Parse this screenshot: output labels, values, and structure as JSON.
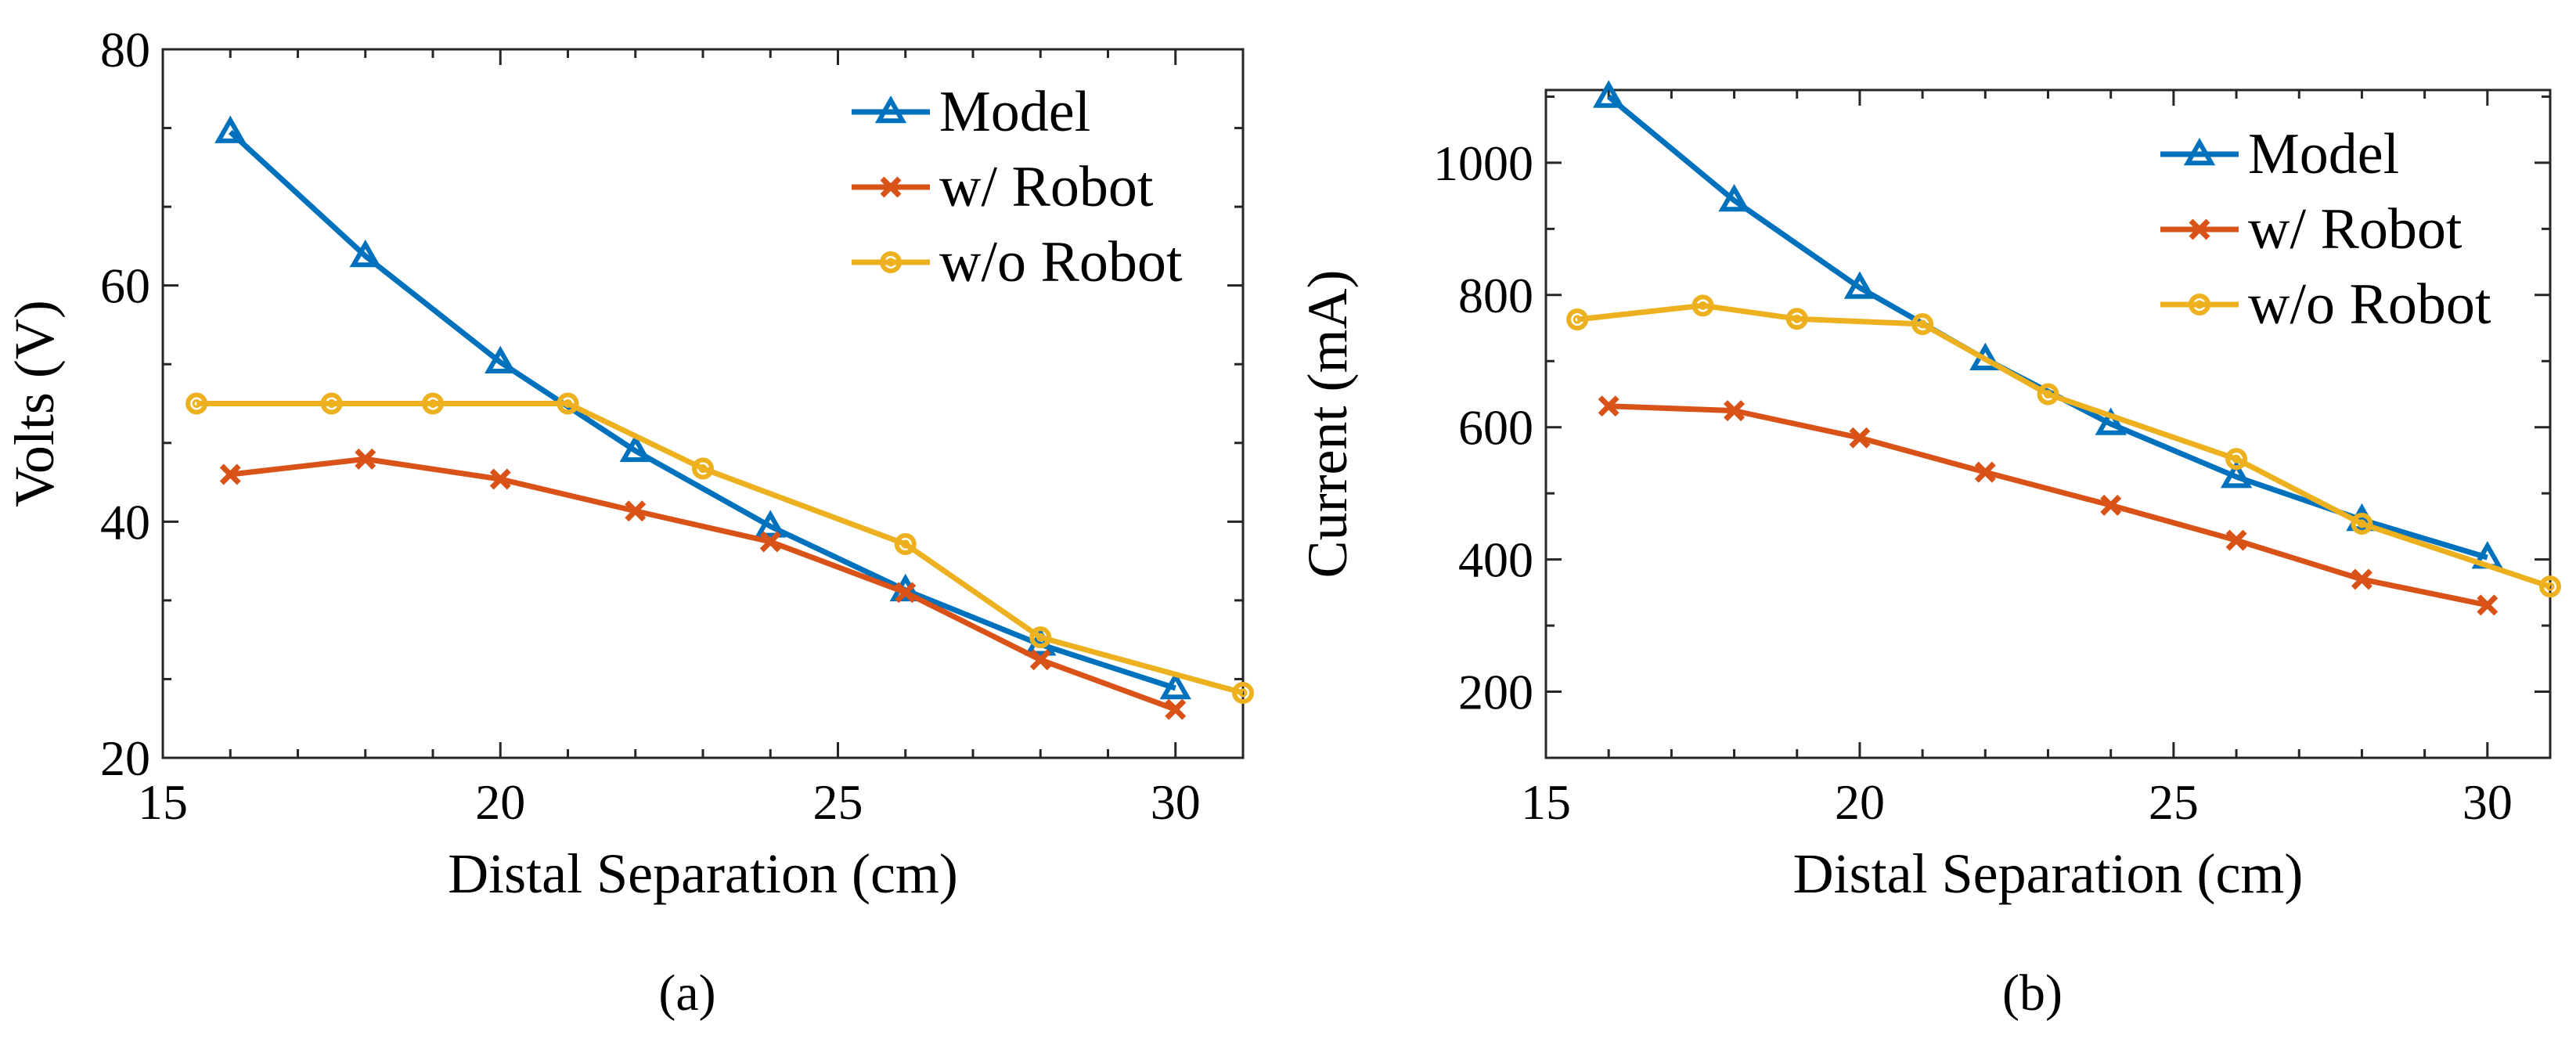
{
  "colors": {
    "model": "#0072BD",
    "with_robot": "#D95319",
    "without_robot": "#EDB120"
  },
  "chart_data": [
    {
      "type": "line",
      "panel_label": "(a)",
      "xlabel": "Distal Separation (cm)",
      "ylabel": "Volts (V)",
      "xlim": [
        15,
        31
      ],
      "ylim": [
        20,
        80
      ],
      "xticks": [
        15,
        20,
        25,
        30
      ],
      "yticks": [
        20,
        40,
        60,
        80
      ],
      "grid": false,
      "legend_position": "top-right",
      "series": [
        {
          "name": "Model",
          "marker": "triangle",
          "color": "#0072BD",
          "x": [
            16,
            18,
            20,
            22,
            24,
            26,
            28,
            30
          ],
          "y": [
            73.0,
            62.5,
            53.5,
            46.0,
            39.6,
            34.2,
            29.6,
            25.9
          ]
        },
        {
          "name": "w/ Robot",
          "marker": "x",
          "color": "#D95319",
          "x": [
            16,
            18,
            20,
            22,
            24,
            26,
            28,
            30
          ],
          "y": [
            44.0,
            45.3,
            43.6,
            40.9,
            38.3,
            34.0,
            28.3,
            24.1
          ]
        },
        {
          "name": "w/o Robot",
          "marker": "circle",
          "color": "#EDB120",
          "x": [
            15.5,
            17.5,
            19,
            21,
            23,
            26,
            28,
            31
          ],
          "y": [
            50.0,
            50.0,
            50.0,
            50.0,
            44.5,
            38.1,
            30.2,
            25.5
          ]
        }
      ]
    },
    {
      "type": "line",
      "panel_label": "(b)",
      "xlabel": "Distal Separation (cm)",
      "ylabel": "Current (mA)",
      "xlim": [
        15,
        31
      ],
      "ylim": [
        100,
        1110
      ],
      "xticks": [
        15,
        20,
        25,
        30
      ],
      "yticks": [
        200,
        400,
        600,
        800,
        1000
      ],
      "grid": false,
      "legend_position": "top-right",
      "series": [
        {
          "name": "Model",
          "marker": "triangle",
          "color": "#0072BD",
          "x": [
            16,
            18,
            20,
            22,
            24,
            26,
            28,
            30
          ],
          "y": [
            1100,
            943,
            811,
            703,
            605,
            525,
            460,
            403
          ]
        },
        {
          "name": "w/ Robot",
          "marker": "x",
          "color": "#D95319",
          "x": [
            16,
            18,
            20,
            22,
            24,
            26,
            28,
            30
          ],
          "y": [
            632,
            625,
            584,
            532,
            482,
            429,
            370,
            331
          ]
        },
        {
          "name": "w/o Robot",
          "marker": "circle",
          "color": "#EDB120",
          "x": [
            15.5,
            17.5,
            19,
            21,
            23,
            26,
            28,
            31
          ],
          "y": [
            763,
            784,
            764,
            756,
            650,
            552,
            454,
            359
          ]
        }
      ]
    }
  ]
}
